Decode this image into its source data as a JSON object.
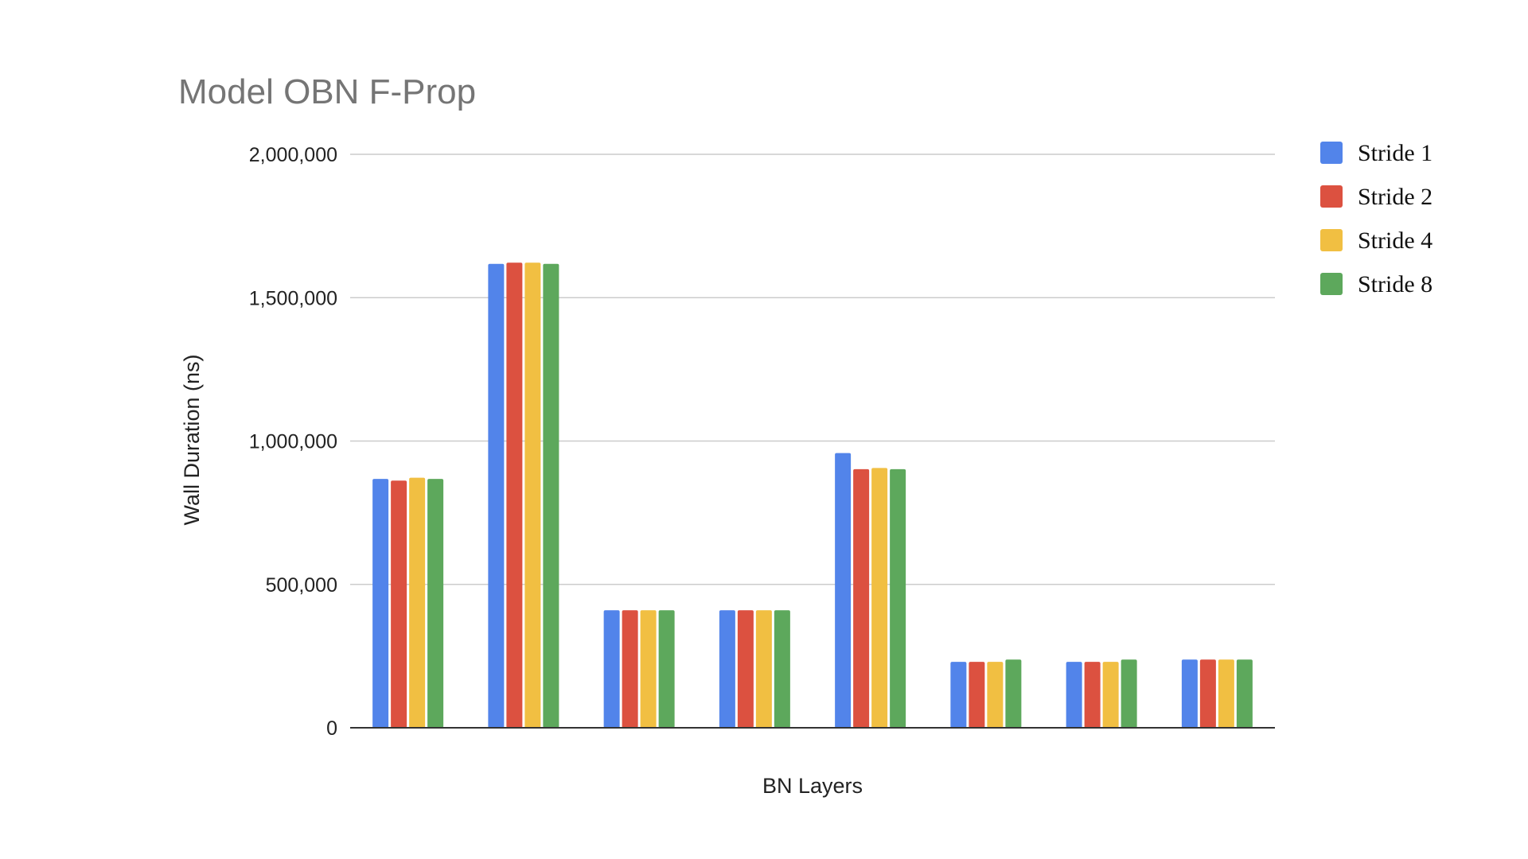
{
  "chart_data": {
    "type": "bar",
    "title": "Model OBN F-Prop",
    "xlabel": "BN Layers",
    "ylabel": "Wall Duration (ns)",
    "ylim": [
      0,
      2000000
    ],
    "yticks": [
      0,
      500000,
      1000000,
      1500000,
      2000000
    ],
    "ytick_labels": [
      "0",
      "500,000",
      "1,000,000",
      "1,500,000",
      "2,000,000"
    ],
    "grid": true,
    "legend_position": "right",
    "categories": [
      "",
      "",
      "",
      "",
      "",
      "",
      "",
      ""
    ],
    "series": [
      {
        "name": "Stride 1",
        "color": "#5284ea",
        "values": [
          868000,
          1618000,
          410000,
          410000,
          958000,
          230000,
          230000,
          238000
        ]
      },
      {
        "name": "Stride 2",
        "color": "#dc5140",
        "values": [
          862000,
          1622000,
          410000,
          410000,
          902000,
          230000,
          230000,
          238000
        ]
      },
      {
        "name": "Stride 4",
        "color": "#f1bf42",
        "values": [
          872000,
          1622000,
          410000,
          410000,
          906000,
          230000,
          230000,
          238000
        ]
      },
      {
        "name": "Stride 8",
        "color": "#5da85c",
        "values": [
          868000,
          1618000,
          410000,
          410000,
          902000,
          238000,
          238000,
          238000
        ]
      }
    ]
  }
}
